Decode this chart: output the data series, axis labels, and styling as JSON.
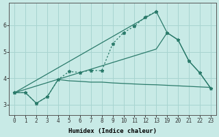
{
  "xlabel": "Humidex (Indice chaleur)",
  "background_color": "#c8eae6",
  "grid_color": "#a8d4d0",
  "line_color": "#2a7a6a",
  "ylim": [
    2.6,
    6.85
  ],
  "xtick_labels": [
    "0",
    "1",
    "2",
    "3",
    "4",
    "5",
    "6",
    "7",
    "8",
    "9",
    "10",
    "11",
    "12",
    "13",
    "19",
    "20",
    "21",
    "22",
    "23"
  ],
  "yticks": [
    3,
    4,
    5,
    6
  ],
  "line1_x": [
    0,
    1,
    2,
    3,
    4,
    5,
    6,
    7,
    8,
    9,
    10,
    11,
    12,
    13
  ],
  "line1_y": [
    3.45,
    3.45,
    3.05,
    3.3,
    3.95,
    4.25,
    4.22,
    4.3,
    4.28,
    5.3,
    5.72,
    5.97,
    6.32,
    6.52
  ],
  "line2_x": [
    0,
    1,
    2,
    3,
    4,
    5,
    6,
    7,
    8,
    9,
    10,
    11,
    12,
    13,
    14,
    15,
    16,
    17,
    18
  ],
  "line2_y": [
    3.45,
    3.45,
    3.05,
    3.3,
    3.95,
    3.9,
    3.88,
    3.85,
    3.85,
    3.82,
    3.8,
    3.78,
    3.76,
    3.75,
    3.73,
    3.71,
    3.69,
    3.67,
    3.65
  ],
  "line3_x": [
    0,
    13,
    14,
    15,
    16,
    17,
    18
  ],
  "line3_y": [
    3.45,
    6.52,
    5.72,
    5.45,
    4.65,
    4.2,
    3.62
  ],
  "line4_x": [
    0,
    13,
    14,
    15,
    16,
    17,
    18
  ],
  "line4_y": [
    3.45,
    5.1,
    5.72,
    5.45,
    4.65,
    4.2,
    3.62
  ]
}
